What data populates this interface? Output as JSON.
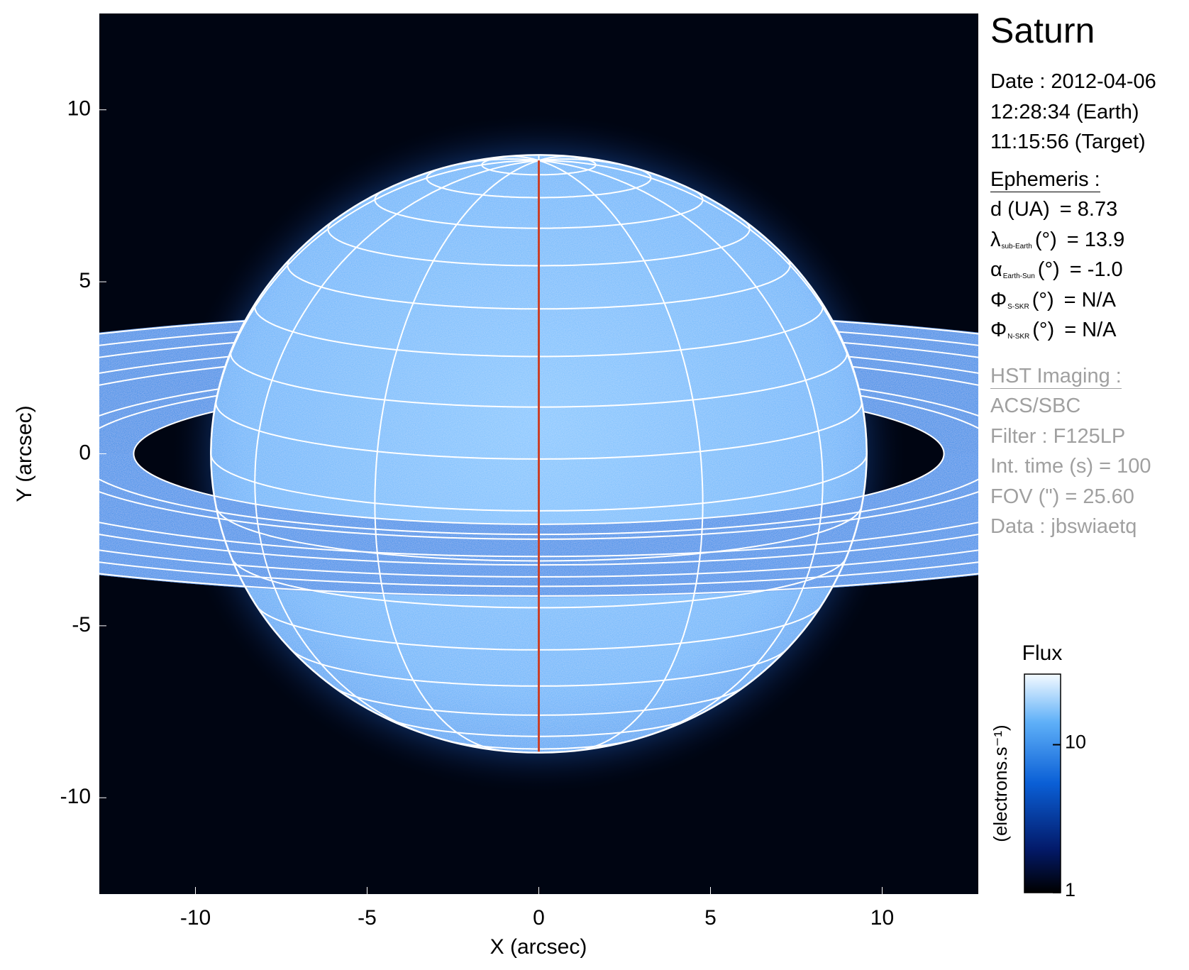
{
  "chart_data": {
    "type": "image",
    "xlabel": "X (arcsec)",
    "ylabel": "Y (arcsec)",
    "xlim": [
      -12.8,
      12.8
    ],
    "ylim": [
      -12.8,
      12.8
    ],
    "xticks": [
      -10,
      -5,
      0,
      5,
      10
    ],
    "yticks": [
      -10,
      -5,
      0,
      5,
      10
    ],
    "colorbar": {
      "title": "Flux",
      "label": "(electrons.s⁻¹)",
      "log_scale": true,
      "lim": [
        1,
        30
      ],
      "ticks": [
        1,
        10
      ]
    }
  },
  "info": {
    "title": "Saturn",
    "date": [
      "Date : 2012-04-06",
      "12:28:34 (Earth)",
      "11:15:56 (Target)"
    ],
    "ephemeris": {
      "heading": "Ephemeris :",
      "rows": [
        {
          "label": "d (UA)",
          "value": "= 8.73"
        },
        {
          "symbol": "λ",
          "sub": "sub-Earth",
          "label": "(°)",
          "value": "= 13.9"
        },
        {
          "symbol": "α",
          "sub": "Earth-Sun",
          "label": "(°)",
          "value": "= -1.0"
        },
        {
          "symbol": "Φ",
          "sub": "S-SKR",
          "label": "(°)",
          "value": "= N/A"
        },
        {
          "symbol": "Φ",
          "sub": "N-SKR",
          "label": "(°)",
          "value": "= N/A"
        }
      ]
    },
    "imaging": {
      "heading": "HST Imaging :",
      "lines": [
        "ACS/SBC",
        "Filter : F125LP",
        "Int. time (s) = 100",
        "FOV (\") = 25.60",
        "Data : jbswiaetq"
      ]
    }
  }
}
